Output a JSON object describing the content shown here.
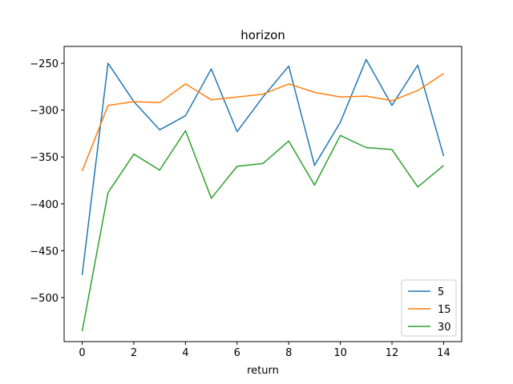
{
  "chart_data": {
    "type": "line",
    "title": "horizon",
    "xlabel": "return",
    "ylabel": "",
    "x": [
      0,
      1,
      2,
      3,
      4,
      5,
      6,
      7,
      8,
      9,
      10,
      11,
      12,
      13,
      14
    ],
    "xlim": [
      -0.7,
      14.7
    ],
    "ylim": [
      -547,
      -232
    ],
    "xticks": [
      0,
      2,
      4,
      6,
      8,
      10,
      12,
      14
    ],
    "yticks": [
      -250,
      -300,
      -350,
      -400,
      -450,
      -500
    ],
    "ytick_labels": [
      "−250",
      "−300",
      "−350",
      "−400",
      "−450",
      "−500"
    ],
    "grid": false,
    "legend_position": "lower-right",
    "series": [
      {
        "name": "5",
        "color": "#1f77b4",
        "values": [
          -476,
          -250,
          -291,
          -321,
          -306,
          -256,
          -323,
          -286,
          -253,
          -359,
          -313,
          -246,
          -295,
          -252,
          -349
        ]
      },
      {
        "name": "15",
        "color": "#ff7f0e",
        "values": [
          -365,
          -295,
          -291,
          -292,
          -272,
          -289,
          -286,
          -283,
          -272,
          -281,
          -286,
          -285,
          -290,
          -279,
          -261
        ]
      },
      {
        "name": "30",
        "color": "#2ca02c",
        "values": [
          -536,
          -388,
          -347,
          -364,
          -322,
          -394,
          -360,
          -357,
          -333,
          -380,
          -327,
          -340,
          -342,
          -382,
          -359
        ]
      }
    ]
  }
}
